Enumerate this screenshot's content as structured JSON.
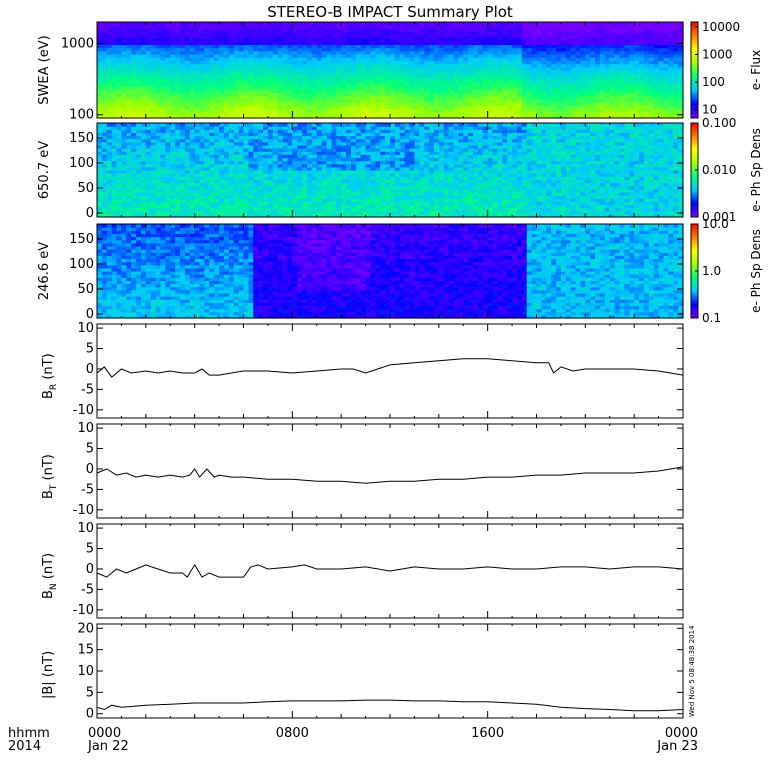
{
  "title": "STEREO-B IMPACT Summary Plot",
  "timestamp_vertical": "Wed Nov  5 08:48:38 2014",
  "time_axis": {
    "corner_label_1": "hhmm",
    "corner_label_2": "2014",
    "ticks": [
      {
        "label": "0000",
        "sublabel": "Jan 22",
        "hours": 0
      },
      {
        "label": "0800",
        "sublabel": "",
        "hours": 8
      },
      {
        "label": "1600",
        "sublabel": "",
        "hours": 16
      },
      {
        "label": "0000",
        "sublabel": "Jan 23",
        "hours": 24
      }
    ]
  },
  "colors": {
    "trace": "#000000",
    "colorbar_stops": [
      "#7a00ff",
      "#0000ff",
      "#00c8ff",
      "#00ff80",
      "#a0ff00",
      "#ffff00",
      "#ff8000",
      "#ff0000"
    ]
  },
  "chart_data": [
    {
      "type": "heatmap",
      "ylabel": "SWEA (eV)",
      "ylog": true,
      "ylim": [
        90,
        2000
      ],
      "yticks": [
        {
          "v": 100,
          "label": "100"
        },
        {
          "v": 1000,
          "label": "1000"
        }
      ],
      "colorbar": {
        "label": "e- Flux",
        "log": true,
        "range": [
          5,
          15000
        ],
        "ticks": [
          {
            "v": 10,
            "label": "10"
          },
          {
            "v": 100,
            "label": "100"
          },
          {
            "v": 1000,
            "label": "1000"
          },
          {
            "v": 10000,
            "label": "10000"
          }
        ]
      },
      "profile": "swea"
    },
    {
      "type": "heatmap",
      "ylabel": "650.7 eV",
      "ylog": false,
      "ylim": [
        -8,
        180
      ],
      "yticks": [
        {
          "v": 0,
          "label": "0"
        },
        {
          "v": 50,
          "label": "50"
        },
        {
          "v": 100,
          "label": "100"
        },
        {
          "v": 150,
          "label": "150"
        }
      ],
      "colorbar": {
        "label": "e- Ph Sp Dens",
        "log": true,
        "range": [
          0.001,
          0.1
        ],
        "ticks": [
          {
            "v": 0.001,
            "label": "0.001"
          },
          {
            "v": 0.01,
            "label": "0.010"
          },
          {
            "v": 0.1,
            "label": "0.100"
          }
        ]
      },
      "profile": "pad650"
    },
    {
      "type": "heatmap",
      "ylabel": "246.6 eV",
      "ylog": false,
      "ylim": [
        -8,
        180
      ],
      "yticks": [
        {
          "v": 0,
          "label": "0"
        },
        {
          "v": 50,
          "label": "50"
        },
        {
          "v": 100,
          "label": "100"
        },
        {
          "v": 150,
          "label": "150"
        }
      ],
      "colorbar": {
        "label": "e- Ph Sp Dens",
        "log": true,
        "range": [
          0.1,
          10
        ],
        "ticks": [
          {
            "v": 0.1,
            "label": "0.1"
          },
          {
            "v": 1,
            "label": "1.0"
          },
          {
            "v": 10,
            "label": "10.0"
          }
        ]
      },
      "profile": "pad246"
    },
    {
      "type": "line",
      "ylabel_main": "B",
      "ylabel_sub": "R",
      "ylabel_unit": "(nT)",
      "ylim": [
        -12,
        11
      ],
      "yticks": [
        {
          "v": -10,
          "label": "-10"
        },
        {
          "v": -5,
          "label": "-5"
        },
        {
          "v": 0,
          "label": "0"
        },
        {
          "v": 5,
          "label": "5"
        },
        {
          "v": 10,
          "label": "10"
        }
      ],
      "x": [
        0,
        0.3,
        0.6,
        1.0,
        1.4,
        2.0,
        2.5,
        3.0,
        3.5,
        4.0,
        4.3,
        4.6,
        5.0,
        5.5,
        6.0,
        7.0,
        8.0,
        9.0,
        10.0,
        10.5,
        11.0,
        12.0,
        13.0,
        14.0,
        15.0,
        16.0,
        17.0,
        18.0,
        18.5,
        18.7,
        19.0,
        19.5,
        20.0,
        21.0,
        22.0,
        23.0,
        24.0
      ],
      "y": [
        -1,
        0.5,
        -2,
        0,
        -1,
        -0.5,
        -1,
        -0.5,
        -1,
        -1,
        0,
        -1.5,
        -1.5,
        -1,
        -0.5,
        -0.5,
        -1,
        -0.5,
        0,
        0,
        -1,
        1,
        1.5,
        2,
        2.5,
        2.5,
        2,
        1.5,
        1.5,
        -1,
        0.5,
        -0.5,
        0,
        0,
        0,
        -0.5,
        -1.5
      ]
    },
    {
      "type": "line",
      "ylabel_main": "B",
      "ylabel_sub": "T",
      "ylabel_unit": "(nT)",
      "ylim": [
        -12,
        11
      ],
      "yticks": [
        {
          "v": -10,
          "label": "-10"
        },
        {
          "v": -5,
          "label": "-5"
        },
        {
          "v": 0,
          "label": "0"
        },
        {
          "v": 5,
          "label": "5"
        },
        {
          "v": 10,
          "label": "10"
        }
      ],
      "x": [
        0,
        0.4,
        0.8,
        1.2,
        1.6,
        2.0,
        2.5,
        3.0,
        3.5,
        3.8,
        4.0,
        4.2,
        4.5,
        4.8,
        5.0,
        5.5,
        6.0,
        7.0,
        8.0,
        9.0,
        10.0,
        11.0,
        12.0,
        13.0,
        14.0,
        15.0,
        16.0,
        17.0,
        18.0,
        19.0,
        20.0,
        21.0,
        22.0,
        23.0,
        24.0
      ],
      "y": [
        -1,
        0,
        -1.5,
        -1,
        -2,
        -1.5,
        -2,
        -1.5,
        -2,
        -1.5,
        0,
        -2,
        0,
        -2,
        -1.5,
        -2,
        -2,
        -2.5,
        -2.5,
        -3,
        -3,
        -3.5,
        -3,
        -3,
        -2.5,
        -2.5,
        -2,
        -2,
        -1.5,
        -1.5,
        -1,
        -1,
        -1,
        -0.5,
        0.5
      ]
    },
    {
      "type": "line",
      "ylabel_main": "B",
      "ylabel_sub": "N",
      "ylabel_unit": "(nT)",
      "ylim": [
        -12,
        11
      ],
      "yticks": [
        {
          "v": -10,
          "label": "-10"
        },
        {
          "v": -5,
          "label": "-5"
        },
        {
          "v": 0,
          "label": "0"
        },
        {
          "v": 5,
          "label": "5"
        },
        {
          "v": 10,
          "label": "10"
        }
      ],
      "x": [
        0,
        0.4,
        0.8,
        1.2,
        1.6,
        2.0,
        2.5,
        3.0,
        3.5,
        3.7,
        4.0,
        4.3,
        4.6,
        5.0,
        5.5,
        6.0,
        6.3,
        6.6,
        7.0,
        8.0,
        8.5,
        9.0,
        10.0,
        11.0,
        12.0,
        12.5,
        13.0,
        14.0,
        15.0,
        16.0,
        17.0,
        18.0,
        19.0,
        20.0,
        21.0,
        22.0,
        23.0,
        24.0
      ],
      "y": [
        -1,
        -2,
        0,
        -1,
        0,
        1,
        0,
        -1,
        -1,
        -2,
        1,
        -2,
        -1,
        -2,
        -2,
        -2,
        0.5,
        1,
        0,
        0.5,
        1,
        0,
        0,
        0.5,
        -0.5,
        0,
        0.5,
        0,
        0,
        0.5,
        0,
        0,
        0.5,
        0.5,
        0,
        0.5,
        0.5,
        0
      ]
    },
    {
      "type": "line",
      "ylabel_main": "|B|",
      "ylabel_sub": "",
      "ylabel_unit": "(nT)",
      "ylim": [
        -1,
        21
      ],
      "yticks": [
        {
          "v": 0,
          "label": "0"
        },
        {
          "v": 5,
          "label": "5"
        },
        {
          "v": 10,
          "label": "10"
        },
        {
          "v": 15,
          "label": "15"
        },
        {
          "v": 20,
          "label": "20"
        }
      ],
      "x": [
        0,
        0.3,
        0.6,
        1.0,
        2.0,
        3.0,
        4.0,
        5.0,
        6.0,
        7.0,
        8.0,
        9.0,
        10.0,
        11.0,
        12.0,
        13.0,
        14.0,
        15.0,
        16.0,
        17.0,
        18.0,
        19.0,
        20.0,
        21.0,
        22.0,
        23.0,
        24.0
      ],
      "y": [
        1.5,
        1,
        2,
        1.5,
        2,
        2.2,
        2.5,
        2.5,
        2.5,
        2.8,
        3,
        3,
        3,
        3.2,
        3.2,
        3,
        3,
        2.8,
        2.8,
        2.5,
        2.2,
        1.5,
        1.2,
        1,
        0.7,
        0.7,
        1
      ]
    }
  ]
}
